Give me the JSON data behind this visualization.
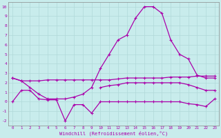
{
  "xlabel": "Windchill (Refroidissement éolien,°C)",
  "background_color": "#c8ecec",
  "grid_color": "#b0d8d8",
  "line_color": "#aa00aa",
  "x_values": [
    0,
    1,
    2,
    3,
    4,
    5,
    6,
    7,
    8,
    9,
    10,
    11,
    12,
    13,
    14,
    15,
    16,
    17,
    18,
    19,
    20,
    21,
    22,
    23
  ],
  "series_top": [
    2.5,
    2.2,
    2.2,
    2.2,
    2.3,
    2.3,
    2.3,
    2.3,
    2.3,
    2.3,
    2.3,
    2.3,
    2.4,
    2.5,
    2.5,
    2.5,
    2.5,
    2.5,
    2.6,
    2.6,
    2.6,
    2.7,
    2.7,
    2.7
  ],
  "series_peak": [
    2.5,
    2.2,
    1.5,
    0.8,
    0.3,
    0.3,
    0.3,
    0.5,
    0.8,
    1.5,
    3.5,
    5.0,
    6.5,
    7.0,
    8.8,
    10.0,
    10.0,
    9.3,
    6.5,
    5.0,
    4.5,
    2.8,
    2.5,
    2.5
  ],
  "series_flat": [
    0.0,
    1.2,
    1.2,
    0.3,
    0.2,
    0.2,
    -2.0,
    -0.3,
    -0.3,
    -1.2,
    0.0,
    0.0,
    0.0,
    0.0,
    0.0,
    0.0,
    0.0,
    0.0,
    0.0,
    0.0,
    -0.2,
    -0.3,
    -0.5,
    0.3
  ],
  "series_mid": [
    null,
    null,
    null,
    null,
    null,
    null,
    null,
    null,
    null,
    null,
    1.5,
    1.7,
    1.8,
    2.0,
    2.0,
    2.0,
    2.0,
    2.0,
    2.0,
    2.0,
    1.8,
    1.5,
    1.2,
    1.2
  ],
  "ylim": [
    -2.5,
    10.5
  ],
  "xlim": [
    -0.5,
    23.5
  ],
  "yticks": [
    -2,
    -1,
    0,
    1,
    2,
    3,
    4,
    5,
    6,
    7,
    8,
    9,
    10
  ],
  "xticks": [
    0,
    1,
    2,
    3,
    4,
    5,
    6,
    7,
    8,
    9,
    10,
    11,
    12,
    13,
    14,
    15,
    16,
    17,
    18,
    19,
    20,
    21,
    22,
    23
  ]
}
